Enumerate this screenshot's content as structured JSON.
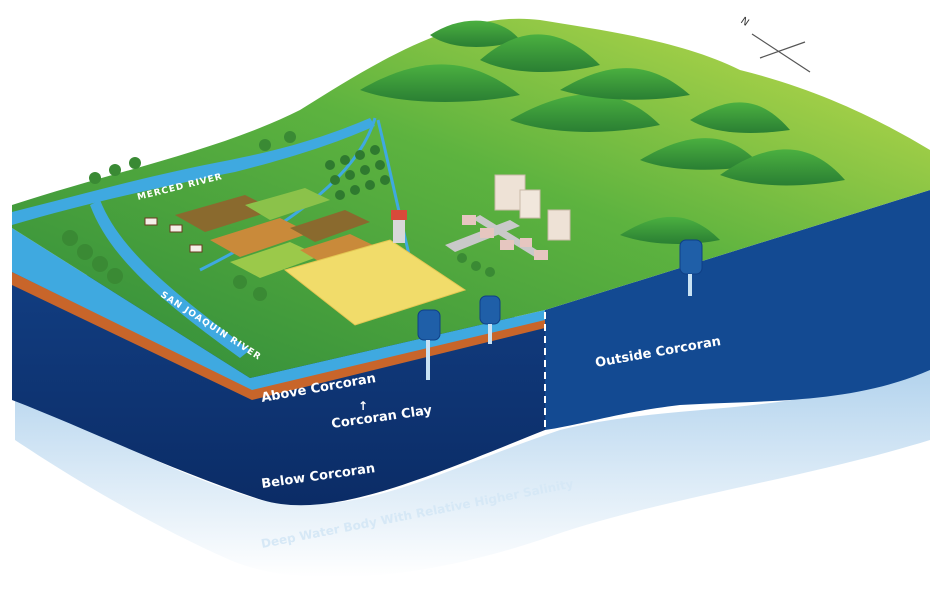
{
  "diagram": {
    "rivers": {
      "merced": "MERCED RIVER",
      "san_joaquin": "SAN JOAQUIN RIVER"
    },
    "layers": {
      "above": "Above Corcoran",
      "clay": "Corcoran Clay",
      "below": "Below Corcoran",
      "outside": "Outside Corcoran",
      "deep": "Deep Water Body With Relative Higher Salinity"
    },
    "compass": {
      "north": "N"
    },
    "colors": {
      "land_dark": "#2f8a3a",
      "land_light": "#b8d84a",
      "hill": "#3e9e3a",
      "shallow_aquifer": "#3fa9e0",
      "clay": "#c8652a",
      "deep_aquifer": "#0f3f86",
      "outside_block": "#134a92",
      "field_yellow": "#f1dc6a",
      "well": "#1f5fa8"
    }
  }
}
